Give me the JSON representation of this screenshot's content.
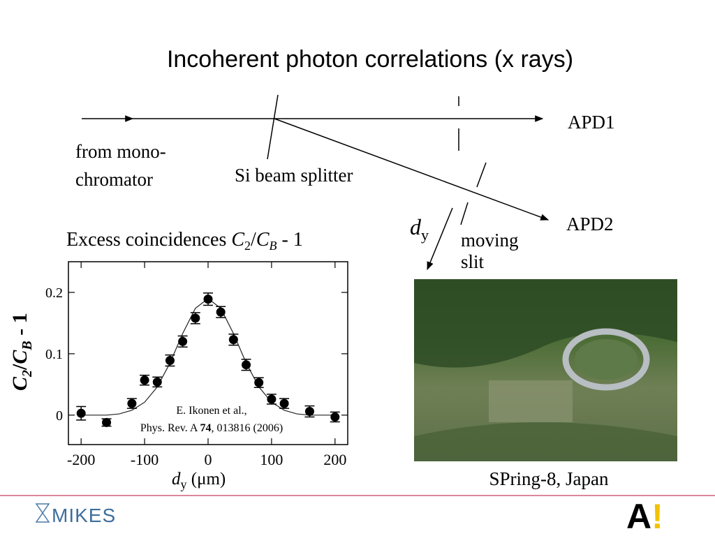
{
  "slide": {
    "title": "Incoherent photon correlations (x rays)"
  },
  "diagram": {
    "source": [
      "from mono-",
      "chromator"
    ],
    "splitter": "Si beam splitter",
    "apd1": "APD1",
    "apd2": "APD2",
    "slit": [
      "moving",
      "slit"
    ],
    "displacement": {
      "symbol": "d",
      "subscript": "y"
    }
  },
  "chart_data": {
    "type": "scatter",
    "title": [
      "Excess coincidences ",
      "C",
      "2",
      "/",
      "C",
      "B",
      " - 1"
    ],
    "ylabel": [
      "C",
      "2",
      "/",
      "C",
      "B",
      " - 1"
    ],
    "xlabel": [
      "d",
      "y",
      " (μm)"
    ],
    "annotation": {
      "line1": "E. Ikonen et al.,",
      "line2": [
        "Phys. Rev. A ",
        "74",
        ", 013816 (2006)"
      ]
    },
    "color": "#000000",
    "points": {
      "x": [
        -200,
        -160,
        -120,
        -100,
        -80,
        -60,
        -40,
        -20,
        0,
        20,
        40,
        60,
        80,
        100,
        120,
        160,
        200
      ],
      "values": [
        0.003,
        -0.012,
        0.019,
        0.057,
        0.054,
        0.089,
        0.12,
        0.158,
        0.189,
        0.168,
        0.123,
        0.082,
        0.053,
        0.026,
        0.019,
        0.006,
        -0.003
      ],
      "errors": [
        0.011,
        0.006,
        0.008,
        0.008,
        0.008,
        0.009,
        0.009,
        0.009,
        0.01,
        0.009,
        0.009,
        0.009,
        0.008,
        0.008,
        0.008,
        0.009,
        0.008
      ]
    },
    "fit": {
      "x": [
        -200,
        -180,
        -160,
        -140,
        -120,
        -100,
        -80,
        -60,
        -40,
        -20,
        0,
        20,
        40,
        60,
        80,
        100,
        120,
        140,
        160,
        180,
        200
      ],
      "values": [
        0,
        0,
        0,
        0.002,
        0.008,
        0.021,
        0.046,
        0.085,
        0.133,
        0.174,
        0.19,
        0.174,
        0.133,
        0.085,
        0.046,
        0.021,
        0.008,
        0.002,
        0,
        0,
        0
      ]
    },
    "xlim": [
      -220,
      220
    ],
    "ylim": [
      -0.048,
      0.25
    ],
    "xticks": [
      -200,
      -100,
      0,
      100,
      200
    ],
    "yticks": [
      0,
      0.1,
      0.2
    ],
    "grid": false
  },
  "photo": {
    "caption": "SPring-8, Japan"
  },
  "footer": {
    "logo": "MIKES",
    "logo2": [
      "A",
      "!"
    ]
  }
}
